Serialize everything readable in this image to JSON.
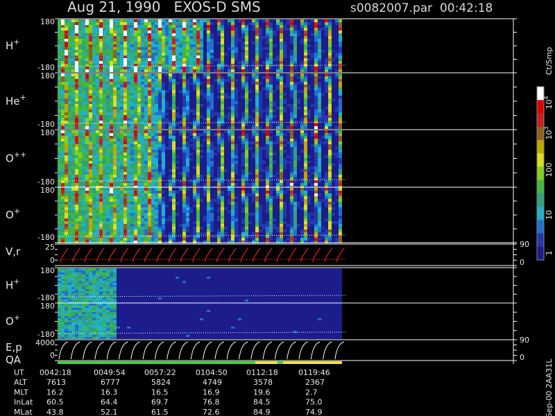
{
  "header": {
    "title": "Aug 21, 1990   EXOS-D SMS",
    "file": "s0082007.par  00:42:18"
  },
  "panels": [
    {
      "label": "H",
      "charge": "+",
      "top": "180",
      "bottom": "-180"
    },
    {
      "label": "He",
      "charge": "+",
      "top": "180",
      "bottom": "-180"
    },
    {
      "label": "O",
      "charge": "++",
      "top": "180",
      "bottom": "-180"
    },
    {
      "label": "O",
      "charge": "+",
      "top": "180",
      "bottom": "-180"
    },
    {
      "label": "V,r",
      "top": "25",
      "bottom": "0",
      "right": [
        "90",
        "0"
      ]
    },
    {
      "label": "H",
      "charge": "+",
      "top": "180",
      "bottom": "-180"
    },
    {
      "label": "O",
      "charge": "+",
      "top": "180",
      "bottom": "-180"
    },
    {
      "label": "E,p",
      "sublabel": "QA",
      "top": "4000",
      "bottom": "0",
      "right": [
        "90",
        "0"
      ]
    }
  ],
  "colorbar": {
    "unit": "Ct/Smp",
    "labels": [
      {
        "base": "10",
        "exp": "4"
      },
      {
        "base": "10",
        "exp": "3"
      },
      {
        "text": "100"
      },
      {
        "text": "10"
      },
      {
        "text": "1"
      }
    ]
  },
  "footer": {
    "rows": [
      {
        "name": "UT",
        "values": [
          "0042:18",
          "0049:54",
          "0057:22",
          "0104:50",
          "0112:18",
          "0119:46"
        ]
      },
      {
        "name": "ALT",
        "values": [
          "7613",
          "6777",
          "5824",
          "4749",
          "3578",
          "2367"
        ]
      },
      {
        "name": "MLT",
        "values": [
          "16.2",
          "16.3",
          "16.5",
          "16.9",
          "19.6",
          "2.7"
        ]
      },
      {
        "name": "InLat",
        "values": [
          "60.5",
          "64.4",
          "69.7",
          "76.8",
          "84.5",
          "75.0"
        ]
      },
      {
        "name": "MLat",
        "values": [
          "43.8",
          "52.1",
          "61.5",
          "72.6",
          "84.9",
          "74.9"
        ]
      }
    ]
  },
  "stamp": "Sep-00 2AA31L"
}
